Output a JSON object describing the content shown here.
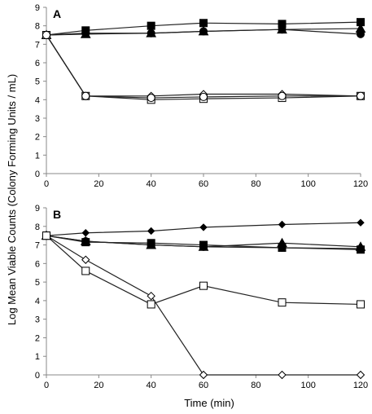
{
  "chart_data": {
    "type": "line",
    "ylabel": "Log Mean Viable Counts (Colony Forming Units / mL)",
    "xlabel": "Time (min)",
    "panels": [
      {
        "label": "A",
        "xlim": [
          0,
          120
        ],
        "ylim": [
          0,
          9
        ],
        "xticks": [
          0,
          20,
          40,
          60,
          80,
          100,
          120
        ],
        "yticks": [
          0,
          1,
          2,
          3,
          4,
          5,
          6,
          7,
          8,
          9
        ],
        "grid": false,
        "series": [
          {
            "marker": "filled-square",
            "x": [
              0,
              15,
              40,
              60,
              90,
              120
            ],
            "y": [
              7.5,
              7.75,
              8.0,
              8.15,
              8.1,
              8.2
            ]
          },
          {
            "marker": "filled-triangle",
            "x": [
              0,
              15,
              40,
              60,
              90,
              120
            ],
            "y": [
              7.5,
              7.55,
              7.6,
              7.7,
              7.8,
              7.85
            ]
          },
          {
            "marker": "filled-circle",
            "x": [
              0,
              15,
              40,
              60,
              90,
              120
            ],
            "y": [
              7.5,
              7.6,
              7.6,
              7.7,
              7.8,
              7.55
            ]
          },
          {
            "marker": "open-diamond",
            "x": [
              0,
              15,
              40,
              60,
              90,
              120
            ],
            "y": [
              7.5,
              4.2,
              4.2,
              4.3,
              4.3,
              4.2
            ]
          },
          {
            "marker": "open-square",
            "x": [
              0,
              15,
              40,
              60,
              90,
              120
            ],
            "y": [
              7.5,
              4.2,
              4.0,
              4.05,
              4.1,
              4.2
            ]
          },
          {
            "marker": "open-circle",
            "x": [
              0,
              15,
              40,
              60,
              90,
              120
            ],
            "y": [
              7.5,
              4.2,
              4.1,
              4.15,
              4.2,
              4.2
            ]
          }
        ]
      },
      {
        "label": "B",
        "xlim": [
          0,
          120
        ],
        "ylim": [
          0,
          9
        ],
        "xticks": [
          0,
          20,
          40,
          60,
          80,
          100,
          120
        ],
        "yticks": [
          0,
          1,
          2,
          3,
          4,
          5,
          6,
          7,
          8,
          9
        ],
        "grid": false,
        "series": [
          {
            "marker": "filled-diamond",
            "x": [
              0,
              15,
              40,
              60,
              90,
              120
            ],
            "y": [
              7.5,
              7.65,
              7.75,
              7.95,
              8.1,
              8.2
            ]
          },
          {
            "marker": "filled-triangle",
            "x": [
              0,
              15,
              40,
              60,
              90,
              120
            ],
            "y": [
              7.5,
              7.2,
              7.0,
              6.9,
              7.1,
              6.9
            ]
          },
          {
            "marker": "filled-square",
            "x": [
              0,
              15,
              40,
              60,
              90,
              120
            ],
            "y": [
              7.5,
              7.15,
              7.1,
              7.0,
              6.85,
              6.75
            ]
          },
          {
            "marker": "filled-circle",
            "x": [
              0,
              15,
              40,
              60,
              90,
              120
            ],
            "y": [
              7.5,
              7.2,
              7.0,
              6.9,
              6.85,
              6.8
            ]
          },
          {
            "marker": "open-diamond",
            "x": [
              0,
              15,
              40,
              60,
              90,
              120
            ],
            "y": [
              7.5,
              6.2,
              4.25,
              0,
              0,
              0
            ]
          },
          {
            "marker": "open-square",
            "x": [
              0,
              15,
              40,
              60,
              90,
              120
            ],
            "y": [
              7.5,
              5.6,
              3.8,
              4.8,
              3.9,
              3.8
            ]
          }
        ]
      }
    ]
  }
}
